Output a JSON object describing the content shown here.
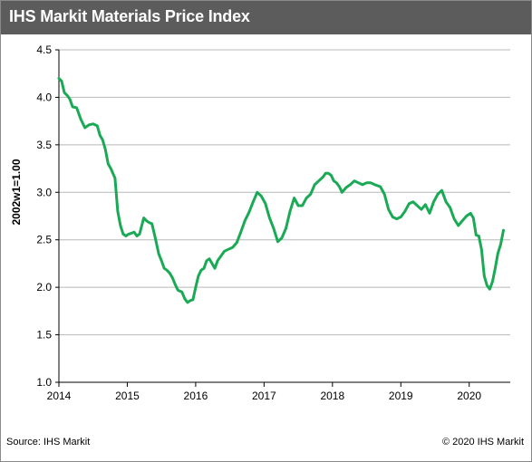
{
  "chart_data": {
    "type": "line",
    "title": "IHS Markit Materials Price Index",
    "ylabel": "2002w1=1.00",
    "xlabel": "",
    "xlim": [
      2014,
      2020.6
    ],
    "ylim": [
      1.0,
      4.5
    ],
    "x_ticks": [
      "2014",
      "2015",
      "2016",
      "2017",
      "2018",
      "2019",
      "2020"
    ],
    "y_ticks": [
      "1.0",
      "1.5",
      "2.0",
      "2.5",
      "3.0",
      "3.5",
      "4.0",
      "4.5"
    ],
    "grid": "horizontal",
    "line_color": "#1aaa55",
    "series": [
      {
        "x": [
          2014.0,
          2014.04,
          2014.08,
          2014.12,
          2014.16,
          2014.2,
          2014.26,
          2014.32,
          2014.38,
          2014.44,
          2014.5,
          2014.56,
          2014.6,
          2014.64,
          2014.68,
          2014.72,
          2014.76,
          2014.82,
          2014.86,
          2014.9,
          2014.94,
          2014.98,
          2015.02,
          2015.06,
          2015.1,
          2015.14,
          2015.18,
          2015.24,
          2015.28,
          2015.32,
          2015.36,
          2015.4,
          2015.46,
          2015.5,
          2015.54,
          2015.58,
          2015.62,
          2015.66,
          2015.7,
          2015.74,
          2015.8,
          2015.84,
          2015.88,
          2015.92,
          2015.96,
          2016.0,
          2016.04,
          2016.08,
          2016.12,
          2016.16,
          2016.2,
          2016.24,
          2016.28,
          2016.32,
          2016.36,
          2016.42,
          2016.48,
          2016.54,
          2016.6,
          2016.66,
          2016.72,
          2016.78,
          2016.84,
          2016.9,
          2016.96,
          2017.02,
          2017.08,
          2017.14,
          2017.2,
          2017.26,
          2017.32,
          2017.38,
          2017.44,
          2017.5,
          2017.56,
          2017.62,
          2017.68,
          2017.74,
          2017.8,
          2017.86,
          2017.9,
          2017.94,
          2017.98,
          2018.02,
          2018.06,
          2018.1,
          2018.14,
          2018.2,
          2018.26,
          2018.32,
          2018.38,
          2018.44,
          2018.5,
          2018.56,
          2018.62,
          2018.7,
          2018.76,
          2018.82,
          2018.88,
          2018.94,
          2019.0,
          2019.06,
          2019.12,
          2019.18,
          2019.24,
          2019.3,
          2019.36,
          2019.42,
          2019.48,
          2019.54,
          2019.6,
          2019.66,
          2019.72,
          2019.78,
          2019.84,
          2019.9,
          2019.96,
          2020.02,
          2020.06,
          2020.1,
          2020.14,
          2020.18,
          2020.22,
          2020.26,
          2020.3,
          2020.34,
          2020.38,
          2020.42,
          2020.46,
          2020.5
        ],
        "values": [
          4.2,
          4.17,
          4.05,
          4.02,
          3.98,
          3.9,
          3.89,
          3.77,
          3.68,
          3.71,
          3.72,
          3.7,
          3.6,
          3.55,
          3.45,
          3.3,
          3.25,
          3.15,
          2.8,
          2.65,
          2.56,
          2.54,
          2.56,
          2.57,
          2.58,
          2.54,
          2.56,
          2.73,
          2.7,
          2.68,
          2.67,
          2.55,
          2.35,
          2.28,
          2.2,
          2.18,
          2.15,
          2.1,
          2.03,
          1.97,
          1.95,
          1.88,
          1.84,
          1.86,
          1.87,
          2.0,
          2.12,
          2.18,
          2.2,
          2.28,
          2.3,
          2.25,
          2.2,
          2.28,
          2.32,
          2.38,
          2.4,
          2.42,
          2.47,
          2.58,
          2.7,
          2.79,
          2.9,
          3.0,
          2.96,
          2.88,
          2.73,
          2.62,
          2.48,
          2.52,
          2.62,
          2.8,
          2.94,
          2.86,
          2.86,
          2.94,
          2.98,
          3.08,
          3.12,
          3.16,
          3.2,
          3.2,
          3.18,
          3.12,
          3.1,
          3.06,
          3.0,
          3.05,
          3.08,
          3.12,
          3.1,
          3.08,
          3.1,
          3.1,
          3.08,
          3.06,
          2.98,
          2.82,
          2.74,
          2.72,
          2.74,
          2.8,
          2.88,
          2.9,
          2.86,
          2.82,
          2.87,
          2.78,
          2.9,
          2.98,
          3.02,
          2.9,
          2.84,
          2.72,
          2.65,
          2.7,
          2.75,
          2.78,
          2.73,
          2.55,
          2.54,
          2.4,
          2.12,
          2.02,
          1.98,
          2.06,
          2.2,
          2.36,
          2.45,
          2.6
        ]
      }
    ]
  },
  "footer": {
    "source": "Source: IHS Markit",
    "copyright": "© 2020 IHS Markit"
  }
}
